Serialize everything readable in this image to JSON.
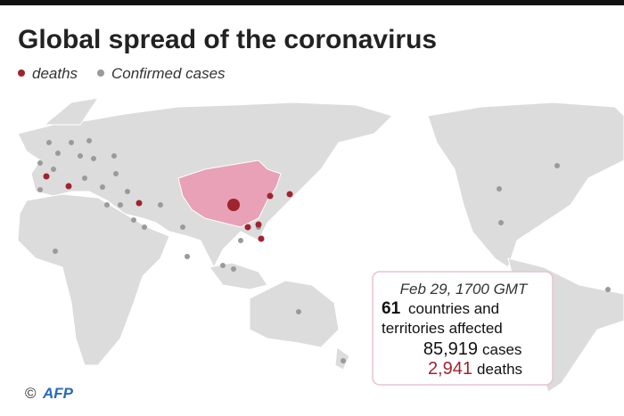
{
  "header": {
    "title": "Global spread of the coronavirus"
  },
  "legend": {
    "items": [
      "deaths",
      "Confirmed cases"
    ]
  },
  "info_box": {
    "date": "Feb 29, 1700 GMT",
    "countries": {
      "number": "61",
      "text_line1": "countries and",
      "text_line2": "territories affected"
    },
    "cases": {
      "number": "85,919",
      "text": "cases"
    },
    "deaths": {
      "number": "2,941",
      "text": "deaths"
    }
  },
  "credit": {
    "copyright": "©",
    "agency": "AFP"
  }
}
